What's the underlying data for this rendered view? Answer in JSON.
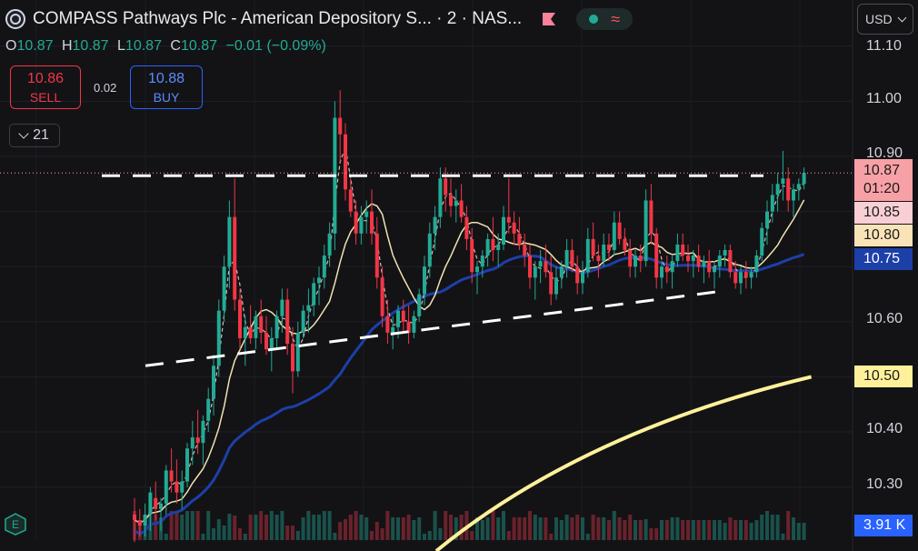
{
  "header": {
    "title": "COMPASS Pathways Plc - American Depository S... · 2 · NAS...",
    "ohlc": {
      "O": "10.87",
      "H": "10.87",
      "L": "10.87",
      "C": "10.87",
      "change": "−0.01 (−0.09%)"
    }
  },
  "trade": {
    "sell_price": "10.86",
    "sell_label": "SELL",
    "spread": "0.02",
    "buy_price": "10.88",
    "buy_label": "BUY"
  },
  "collapse_count": "21",
  "currency": "USD",
  "price_tags": {
    "last": "10.87",
    "countdown": "01:20",
    "ma_fast": "10.85",
    "ma_mid": "10.80",
    "ma_slow": "10.75",
    "ma_long": "10.50",
    "volume": "3.91 K"
  },
  "colors": {
    "background": "#131316",
    "up": "#22ab94",
    "down": "#f23645",
    "ma_fast": "#d8b8b8",
    "ma_mid": "#f0e2b0",
    "ma_slow": "#1d3fa8",
    "ma_long": "#fff19a",
    "trendline": "#ffffff"
  },
  "chart_data": {
    "type": "candlestick",
    "symbol_interval": "2",
    "y_axis_ticks": [
      10.3,
      10.4,
      10.5,
      10.6,
      10.7,
      10.8,
      10.9,
      11.0,
      11.1
    ],
    "y_axis_labels": [
      "10.30",
      "10.40",
      "10.60",
      "10.90",
      "11.00",
      "11.10"
    ],
    "ylim": [
      10.235,
      11.16
    ],
    "last_price": 10.87,
    "candles": [
      [
        10.25,
        10.28,
        10.2,
        10.24
      ],
      [
        10.24,
        10.26,
        10.21,
        10.23
      ],
      [
        10.23,
        10.27,
        10.21,
        10.25
      ],
      [
        10.25,
        10.3,
        10.22,
        10.29
      ],
      [
        10.28,
        10.31,
        10.24,
        10.26
      ],
      [
        10.26,
        10.28,
        10.22,
        10.27
      ],
      [
        10.27,
        10.34,
        10.25,
        10.33
      ],
      [
        10.33,
        10.37,
        10.29,
        10.31
      ],
      [
        10.31,
        10.35,
        10.27,
        10.29
      ],
      [
        10.29,
        10.33,
        10.26,
        10.31
      ],
      [
        10.31,
        10.38,
        10.3,
        10.37
      ],
      [
        10.37,
        10.42,
        10.34,
        10.39
      ],
      [
        10.39,
        10.44,
        10.36,
        10.38
      ],
      [
        10.38,
        10.43,
        10.34,
        10.42
      ],
      [
        10.42,
        10.48,
        10.4,
        10.46
      ],
      [
        10.46,
        10.54,
        10.43,
        10.52
      ],
      [
        10.52,
        10.64,
        10.5,
        10.62
      ],
      [
        10.62,
        10.72,
        10.6,
        10.7
      ],
      [
        10.7,
        10.82,
        10.66,
        10.79
      ],
      [
        10.79,
        10.86,
        10.62,
        10.64
      ],
      [
        10.64,
        10.66,
        10.55,
        10.57
      ],
      [
        10.57,
        10.61,
        10.52,
        10.59
      ],
      [
        10.59,
        10.63,
        10.56,
        10.57
      ],
      [
        10.57,
        10.62,
        10.55,
        10.61
      ],
      [
        10.61,
        10.64,
        10.56,
        10.58
      ],
      [
        10.58,
        10.61,
        10.54,
        10.55
      ],
      [
        10.55,
        10.59,
        10.51,
        10.57
      ],
      [
        10.57,
        10.62,
        10.55,
        10.61
      ],
      [
        10.61,
        10.66,
        10.58,
        10.64
      ],
      [
        10.64,
        10.66,
        10.54,
        10.56
      ],
      [
        10.56,
        10.59,
        10.47,
        10.51
      ],
      [
        10.51,
        10.6,
        10.5,
        10.58
      ],
      [
        10.58,
        10.63,
        10.57,
        10.62
      ],
      [
        10.62,
        10.66,
        10.58,
        10.63
      ],
      [
        10.63,
        10.68,
        10.61,
        10.67
      ],
      [
        10.67,
        10.7,
        10.63,
        10.68
      ],
      [
        10.68,
        10.74,
        10.66,
        10.72
      ],
      [
        10.72,
        10.78,
        10.7,
        10.76
      ],
      [
        10.76,
        11.0,
        10.73,
        10.97
      ],
      [
        10.97,
        11.02,
        10.89,
        10.94
      ],
      [
        10.94,
        10.96,
        10.82,
        10.84
      ],
      [
        10.84,
        10.86,
        10.79,
        10.8
      ],
      [
        10.8,
        10.82,
        10.74,
        10.76
      ],
      [
        10.76,
        10.81,
        10.74,
        10.79
      ],
      [
        10.79,
        10.82,
        10.76,
        10.8
      ],
      [
        10.8,
        10.84,
        10.74,
        10.76
      ],
      [
        10.76,
        10.79,
        10.66,
        10.68
      ],
      [
        10.68,
        10.7,
        10.59,
        10.61
      ],
      [
        10.61,
        10.64,
        10.56,
        10.58
      ],
      [
        10.58,
        10.61,
        10.55,
        10.59
      ],
      [
        10.59,
        10.63,
        10.57,
        10.62
      ],
      [
        10.62,
        10.64,
        10.58,
        10.6
      ],
      [
        10.6,
        10.63,
        10.56,
        10.58
      ],
      [
        10.58,
        10.62,
        10.57,
        10.61
      ],
      [
        10.61,
        10.66,
        10.6,
        10.65
      ],
      [
        10.65,
        10.72,
        10.63,
        10.7
      ],
      [
        10.7,
        10.78,
        10.68,
        10.76
      ],
      [
        10.76,
        10.81,
        10.73,
        10.79
      ],
      [
        10.79,
        10.88,
        10.77,
        10.86
      ],
      [
        10.86,
        10.88,
        10.8,
        10.83
      ],
      [
        10.83,
        10.86,
        10.79,
        10.81
      ],
      [
        10.81,
        10.84,
        10.78,
        10.82
      ],
      [
        10.82,
        10.85,
        10.78,
        10.79
      ],
      [
        10.79,
        10.81,
        10.73,
        10.75
      ],
      [
        10.75,
        10.77,
        10.67,
        10.69
      ],
      [
        10.69,
        10.71,
        10.65,
        10.7
      ],
      [
        10.7,
        10.73,
        10.68,
        10.72
      ],
      [
        10.72,
        10.76,
        10.7,
        10.75
      ],
      [
        10.75,
        10.79,
        10.71,
        10.73
      ],
      [
        10.73,
        10.76,
        10.7,
        10.74
      ],
      [
        10.74,
        10.81,
        10.73,
        10.79
      ],
      [
        10.79,
        10.86,
        10.76,
        10.78
      ],
      [
        10.78,
        10.8,
        10.74,
        10.76
      ],
      [
        10.76,
        10.79,
        10.73,
        10.74
      ],
      [
        10.74,
        10.76,
        10.7,
        10.72
      ],
      [
        10.72,
        10.74,
        10.66,
        10.68
      ],
      [
        10.68,
        10.71,
        10.64,
        10.7
      ],
      [
        10.7,
        10.73,
        10.67,
        10.71
      ],
      [
        10.71,
        10.74,
        10.68,
        10.69
      ],
      [
        10.69,
        10.72,
        10.63,
        10.65
      ],
      [
        10.65,
        10.7,
        10.64,
        10.68
      ],
      [
        10.68,
        10.71,
        10.66,
        10.7
      ],
      [
        10.7,
        10.75,
        10.68,
        10.73
      ],
      [
        10.73,
        10.75,
        10.69,
        10.7
      ],
      [
        10.7,
        10.72,
        10.65,
        10.67
      ],
      [
        10.67,
        10.71,
        10.65,
        10.69
      ],
      [
        10.69,
        10.77,
        10.68,
        10.75
      ],
      [
        10.75,
        10.78,
        10.71,
        10.72
      ],
      [
        10.72,
        10.74,
        10.68,
        10.71
      ],
      [
        10.71,
        10.76,
        10.7,
        10.74
      ],
      [
        10.74,
        10.76,
        10.71,
        10.73
      ],
      [
        10.73,
        10.8,
        10.72,
        10.78
      ],
      [
        10.78,
        10.8,
        10.74,
        10.75
      ],
      [
        10.75,
        10.77,
        10.72,
        10.73
      ],
      [
        10.73,
        10.75,
        10.68,
        10.7
      ],
      [
        10.7,
        10.73,
        10.68,
        10.72
      ],
      [
        10.72,
        10.74,
        10.69,
        10.71
      ],
      [
        10.71,
        10.84,
        10.7,
        10.82
      ],
      [
        10.82,
        10.85,
        10.74,
        10.76
      ],
      [
        10.76,
        10.77,
        10.66,
        10.68
      ],
      [
        10.68,
        10.71,
        10.66,
        10.7
      ],
      [
        10.7,
        10.72,
        10.67,
        10.69
      ],
      [
        10.69,
        10.72,
        10.66,
        10.71
      ],
      [
        10.71,
        10.76,
        10.7,
        10.74
      ],
      [
        10.74,
        10.76,
        10.71,
        10.72
      ],
      [
        10.72,
        10.74,
        10.69,
        10.71
      ],
      [
        10.71,
        10.73,
        10.68,
        10.72
      ],
      [
        10.72,
        10.74,
        10.69,
        10.7
      ],
      [
        10.7,
        10.72,
        10.67,
        10.71
      ],
      [
        10.71,
        10.73,
        10.68,
        10.69
      ],
      [
        10.69,
        10.71,
        10.66,
        10.7
      ],
      [
        10.7,
        10.73,
        10.68,
        10.72
      ],
      [
        10.72,
        10.74,
        10.7,
        10.73
      ],
      [
        10.73,
        10.74,
        10.68,
        10.69
      ],
      [
        10.69,
        10.71,
        10.66,
        10.67
      ],
      [
        10.67,
        10.7,
        10.65,
        10.69
      ],
      [
        10.69,
        10.71,
        10.66,
        10.68
      ],
      [
        10.68,
        10.7,
        10.66,
        10.69
      ],
      [
        10.69,
        10.73,
        10.68,
        10.72
      ],
      [
        10.72,
        10.78,
        10.71,
        10.77
      ],
      [
        10.77,
        10.82,
        10.74,
        10.8
      ],
      [
        10.8,
        10.85,
        10.78,
        10.83
      ],
      [
        10.83,
        10.87,
        10.8,
        10.85
      ],
      [
        10.85,
        10.91,
        10.82,
        10.86
      ],
      [
        10.86,
        10.88,
        10.8,
        10.82
      ],
      [
        10.82,
        10.85,
        10.79,
        10.84
      ],
      [
        10.84,
        10.86,
        10.82,
        10.85
      ],
      [
        10.85,
        10.88,
        10.84,
        10.87
      ]
    ],
    "volume_label": "3.91 K"
  }
}
